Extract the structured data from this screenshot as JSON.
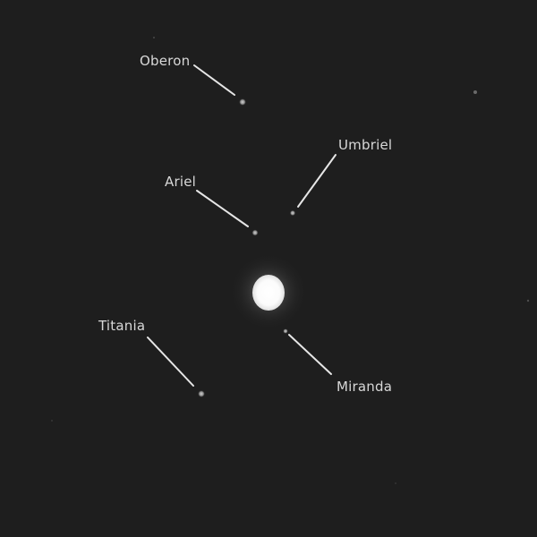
{
  "image": {
    "subject": "Uranus with its five major moons",
    "colors": {
      "background": "#1e1e1e",
      "label_text": "#d8d8d8",
      "pointer_line": "#e6e6e6"
    }
  },
  "labels": {
    "oberon": "Oberon",
    "umbriel": "Umbriel",
    "ariel": "Ariel",
    "titania": "Titania",
    "miranda": "Miranda"
  }
}
